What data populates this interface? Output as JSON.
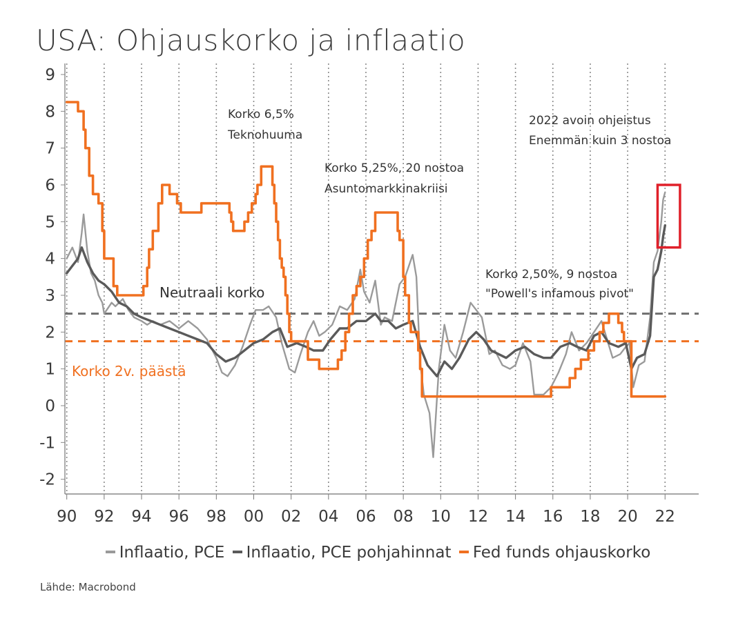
{
  "title": "USA: Ohjauskorko ja inflaatio",
  "source": "Lähde: Macrobond",
  "colors": {
    "pce": "#9a9a9a",
    "core_pce": "#5a5a5a",
    "fed_funds": "#f07020",
    "neutral_line": "#6e6e6e",
    "rate_2y_line": "#f07020",
    "highlight_box": "#e0202a",
    "grid": "#8a8a8a"
  },
  "legend": [
    {
      "label": "Inflaatio, PCE",
      "color": "#9a9a9a"
    },
    {
      "label": "Inflaatio, PCE pohjahinnat",
      "color": "#5a5a5a"
    },
    {
      "label": "Fed funds ohjauskorko",
      "color": "#f07020"
    }
  ],
  "annotations": {
    "korko65_line1": "Korko 6,5%",
    "korko65_line2": "Teknohuuma",
    "korko525_line1": "Korko 5,25%, 20 nostoa",
    "korko525_line2": "Asuntomarkkinakriisi",
    "korko250_line1": "Korko 2,50%, 9 nostoa",
    "korko250_line2": "\"Powell's infamous pivot\"",
    "ohjeistus_line1": "2022 avoin ohjeistus",
    "ohjeistus_line2": "Enemmän kuin 3 nostoa",
    "neutral": "Neutraali korko",
    "rate_2y": "Korko 2v. päästä"
  },
  "chart_data": {
    "type": "line",
    "title": "USA: Ohjauskorko ja inflaatio",
    "x_tick_labels": [
      "90",
      "92",
      "94",
      "96",
      "98",
      "00",
      "02",
      "04",
      "06",
      "08",
      "10",
      "12",
      "14",
      "16",
      "18",
      "20",
      "22"
    ],
    "x_tick_years": [
      1990,
      1992,
      1994,
      1996,
      1998,
      2000,
      2002,
      2004,
      2006,
      2008,
      2010,
      2012,
      2014,
      2016,
      2018,
      2020,
      2022
    ],
    "xlim": [
      1989.9,
      2023.8
    ],
    "ylim": [
      -2.4,
      9.3
    ],
    "y_ticks": [
      -2,
      -1,
      0,
      1,
      2,
      3,
      4,
      5,
      6,
      7,
      8,
      9
    ],
    "y_tick_labels": [
      "-2",
      "-1",
      "0",
      "1",
      "2",
      "3",
      "4",
      "5",
      "6",
      "7",
      "8",
      "9"
    ],
    "grid": "vertical dotted",
    "legend_position": "bottom",
    "reference_lines": [
      {
        "name": "Neutraali korko",
        "y": 2.5,
        "style": "dashed",
        "color": "#6e6e6e"
      },
      {
        "name": "Korko 2v. päästä",
        "y": 1.75,
        "style": "dashed",
        "color": "#f07020"
      }
    ],
    "highlight_box": {
      "x": [
        2021.6,
        2022.8
      ],
      "y": [
        4.3,
        6.0
      ],
      "color": "#e0202a"
    },
    "series": [
      {
        "name": "Fed funds ohjauskorko",
        "color": "#f07020",
        "step": true,
        "points": [
          [
            1990.0,
            8.25
          ],
          [
            1990.6,
            8.0
          ],
          [
            1990.9,
            7.5
          ],
          [
            1991.0,
            7.0
          ],
          [
            1991.2,
            6.25
          ],
          [
            1991.4,
            5.75
          ],
          [
            1991.7,
            5.5
          ],
          [
            1991.9,
            4.75
          ],
          [
            1992.0,
            4.0
          ],
          [
            1992.5,
            3.25
          ],
          [
            1992.7,
            3.0
          ],
          [
            1994.1,
            3.25
          ],
          [
            1994.3,
            3.75
          ],
          [
            1994.4,
            4.25
          ],
          [
            1994.6,
            4.75
          ],
          [
            1994.9,
            5.5
          ],
          [
            1995.1,
            6.0
          ],
          [
            1995.5,
            5.75
          ],
          [
            1995.9,
            5.5
          ],
          [
            1996.1,
            5.25
          ],
          [
            1997.2,
            5.5
          ],
          [
            1998.7,
            5.25
          ],
          [
            1998.8,
            5.0
          ],
          [
            1998.9,
            4.75
          ],
          [
            1999.5,
            5.0
          ],
          [
            1999.7,
            5.25
          ],
          [
            1999.9,
            5.5
          ],
          [
            2000.1,
            5.75
          ],
          [
            2000.2,
            6.0
          ],
          [
            2000.4,
            6.5
          ],
          [
            2001.0,
            6.0
          ],
          [
            2001.1,
            5.5
          ],
          [
            2001.2,
            5.0
          ],
          [
            2001.3,
            4.5
          ],
          [
            2001.4,
            4.0
          ],
          [
            2001.5,
            3.75
          ],
          [
            2001.6,
            3.5
          ],
          [
            2001.7,
            3.0
          ],
          [
            2001.8,
            2.5
          ],
          [
            2001.9,
            2.0
          ],
          [
            2002.0,
            1.75
          ],
          [
            2002.9,
            1.25
          ],
          [
            2003.5,
            1.0
          ],
          [
            2004.5,
            1.25
          ],
          [
            2004.7,
            1.5
          ],
          [
            2004.9,
            2.0
          ],
          [
            2005.1,
            2.5
          ],
          [
            2005.3,
            3.0
          ],
          [
            2005.5,
            3.25
          ],
          [
            2005.7,
            3.5
          ],
          [
            2005.9,
            4.0
          ],
          [
            2006.1,
            4.5
          ],
          [
            2006.3,
            4.75
          ],
          [
            2006.5,
            5.25
          ],
          [
            2007.7,
            4.75
          ],
          [
            2007.8,
            4.5
          ],
          [
            2008.0,
            3.5
          ],
          [
            2008.1,
            3.0
          ],
          [
            2008.3,
            2.25
          ],
          [
            2008.4,
            2.0
          ],
          [
            2008.8,
            1.5
          ],
          [
            2008.9,
            1.0
          ],
          [
            2009.0,
            0.25
          ],
          [
            2015.9,
            0.5
          ],
          [
            2016.9,
            0.75
          ],
          [
            2017.2,
            1.0
          ],
          [
            2017.5,
            1.25
          ],
          [
            2017.9,
            1.5
          ],
          [
            2018.2,
            1.75
          ],
          [
            2018.5,
            2.0
          ],
          [
            2018.7,
            2.25
          ],
          [
            2019.0,
            2.5
          ],
          [
            2019.5,
            2.25
          ],
          [
            2019.7,
            2.0
          ],
          [
            2019.8,
            1.75
          ],
          [
            2020.2,
            0.25
          ],
          [
            2022.0,
            0.25
          ]
        ]
      },
      {
        "name": "Inflaatio, PCE",
        "color": "#9a9a9a",
        "points": [
          [
            1990.0,
            4.0
          ],
          [
            1990.3,
            4.3
          ],
          [
            1990.6,
            3.9
          ],
          [
            1990.8,
            4.7
          ],
          [
            1990.9,
            5.2
          ],
          [
            1991.1,
            4.2
          ],
          [
            1991.3,
            3.6
          ],
          [
            1991.5,
            3.4
          ],
          [
            1991.7,
            3.0
          ],
          [
            1991.9,
            2.8
          ],
          [
            1992.0,
            2.5
          ],
          [
            1992.4,
            2.8
          ],
          [
            1992.6,
            2.7
          ],
          [
            1993.0,
            2.9
          ],
          [
            1993.3,
            2.6
          ],
          [
            1993.6,
            2.4
          ],
          [
            1994.0,
            2.3
          ],
          [
            1994.3,
            2.2
          ],
          [
            1994.6,
            2.3
          ],
          [
            1995.0,
            2.2
          ],
          [
            1995.5,
            2.3
          ],
          [
            1996.0,
            2.1
          ],
          [
            1996.5,
            2.3
          ],
          [
            1997.0,
            2.1
          ],
          [
            1997.5,
            1.8
          ],
          [
            1998.0,
            1.3
          ],
          [
            1998.3,
            0.9
          ],
          [
            1998.6,
            0.8
          ],
          [
            1999.0,
            1.1
          ],
          [
            1999.4,
            1.6
          ],
          [
            1999.8,
            2.2
          ],
          [
            2000.1,
            2.6
          ],
          [
            2000.5,
            2.6
          ],
          [
            2000.8,
            2.7
          ],
          [
            2001.2,
            2.4
          ],
          [
            2001.5,
            1.7
          ],
          [
            2001.9,
            1.0
          ],
          [
            2002.2,
            0.9
          ],
          [
            2002.5,
            1.4
          ],
          [
            2002.9,
            2.0
          ],
          [
            2003.2,
            2.3
          ],
          [
            2003.5,
            1.9
          ],
          [
            2003.8,
            2.0
          ],
          [
            2004.2,
            2.2
          ],
          [
            2004.6,
            2.7
          ],
          [
            2005.0,
            2.6
          ],
          [
            2005.4,
            2.9
          ],
          [
            2005.7,
            3.7
          ],
          [
            2005.9,
            3.1
          ],
          [
            2006.2,
            2.8
          ],
          [
            2006.5,
            3.4
          ],
          [
            2006.8,
            2.2
          ],
          [
            2007.0,
            2.4
          ],
          [
            2007.4,
            2.3
          ],
          [
            2007.8,
            3.3
          ],
          [
            2008.1,
            3.5
          ],
          [
            2008.5,
            4.1
          ],
          [
            2008.7,
            3.5
          ],
          [
            2008.9,
            1.2
          ],
          [
            2009.1,
            0.3
          ],
          [
            2009.4,
            -0.2
          ],
          [
            2009.6,
            -1.4
          ],
          [
            2009.9,
            1.0
          ],
          [
            2010.2,
            2.2
          ],
          [
            2010.5,
            1.5
          ],
          [
            2010.8,
            1.3
          ],
          [
            2011.2,
            2.0
          ],
          [
            2011.6,
            2.8
          ],
          [
            2011.9,
            2.6
          ],
          [
            2012.2,
            2.4
          ],
          [
            2012.6,
            1.4
          ],
          [
            2012.9,
            1.5
          ],
          [
            2013.3,
            1.1
          ],
          [
            2013.7,
            1.0
          ],
          [
            2014.0,
            1.1
          ],
          [
            2014.4,
            1.7
          ],
          [
            2014.8,
            1.2
          ],
          [
            2015.0,
            0.3
          ],
          [
            2015.5,
            0.3
          ],
          [
            2015.9,
            0.5
          ],
          [
            2016.3,
            0.9
          ],
          [
            2016.7,
            1.4
          ],
          [
            2017.0,
            2.0
          ],
          [
            2017.4,
            1.5
          ],
          [
            2017.8,
            1.7
          ],
          [
            2018.2,
            2.0
          ],
          [
            2018.6,
            2.3
          ],
          [
            2018.9,
            1.8
          ],
          [
            2019.2,
            1.3
          ],
          [
            2019.6,
            1.4
          ],
          [
            2019.9,
            1.6
          ],
          [
            2020.1,
            1.7
          ],
          [
            2020.3,
            0.5
          ],
          [
            2020.6,
            1.1
          ],
          [
            2020.9,
            1.2
          ],
          [
            2021.2,
            2.4
          ],
          [
            2021.4,
            3.9
          ],
          [
            2021.6,
            4.2
          ],
          [
            2021.8,
            5.0
          ],
          [
            2021.9,
            5.6
          ],
          [
            2022.0,
            5.8
          ]
        ]
      },
      {
        "name": "Inflaatio, PCE pohjahinnat",
        "color": "#5a5a5a",
        "points": [
          [
            1990.0,
            3.6
          ],
          [
            1990.3,
            3.8
          ],
          [
            1990.6,
            4.0
          ],
          [
            1990.8,
            4.3
          ],
          [
            1991.1,
            3.9
          ],
          [
            1991.4,
            3.6
          ],
          [
            1991.7,
            3.4
          ],
          [
            1992.0,
            3.3
          ],
          [
            1992.4,
            3.1
          ],
          [
            1992.8,
            2.8
          ],
          [
            1993.2,
            2.7
          ],
          [
            1993.6,
            2.5
          ],
          [
            1994.0,
            2.4
          ],
          [
            1994.5,
            2.3
          ],
          [
            1995.0,
            2.2
          ],
          [
            1995.5,
            2.1
          ],
          [
            1996.0,
            2.0
          ],
          [
            1996.5,
            1.9
          ],
          [
            1997.0,
            1.8
          ],
          [
            1997.5,
            1.7
          ],
          [
            1998.0,
            1.4
          ],
          [
            1998.5,
            1.2
          ],
          [
            1999.0,
            1.3
          ],
          [
            1999.5,
            1.5
          ],
          [
            2000.0,
            1.7
          ],
          [
            2000.5,
            1.8
          ],
          [
            2001.0,
            2.0
          ],
          [
            2001.4,
            2.1
          ],
          [
            2001.8,
            1.6
          ],
          [
            2002.3,
            1.7
          ],
          [
            2002.8,
            1.6
          ],
          [
            2003.2,
            1.5
          ],
          [
            2003.7,
            1.5
          ],
          [
            2004.1,
            1.8
          ],
          [
            2004.6,
            2.1
          ],
          [
            2005.0,
            2.1
          ],
          [
            2005.5,
            2.3
          ],
          [
            2006.0,
            2.3
          ],
          [
            2006.5,
            2.5
          ],
          [
            2006.8,
            2.3
          ],
          [
            2007.2,
            2.3
          ],
          [
            2007.6,
            2.1
          ],
          [
            2008.0,
            2.2
          ],
          [
            2008.5,
            2.3
          ],
          [
            2008.9,
            1.6
          ],
          [
            2009.3,
            1.1
          ],
          [
            2009.8,
            0.8
          ],
          [
            2010.2,
            1.2
          ],
          [
            2010.6,
            1.0
          ],
          [
            2011.0,
            1.3
          ],
          [
            2011.5,
            1.8
          ],
          [
            2011.9,
            2.0
          ],
          [
            2012.3,
            1.8
          ],
          [
            2012.7,
            1.5
          ],
          [
            2013.1,
            1.4
          ],
          [
            2013.5,
            1.3
          ],
          [
            2014.0,
            1.5
          ],
          [
            2014.5,
            1.6
          ],
          [
            2015.0,
            1.4
          ],
          [
            2015.5,
            1.3
          ],
          [
            2015.9,
            1.3
          ],
          [
            2016.4,
            1.6
          ],
          [
            2016.9,
            1.7
          ],
          [
            2017.3,
            1.6
          ],
          [
            2017.8,
            1.5
          ],
          [
            2018.2,
            1.9
          ],
          [
            2018.6,
            2.0
          ],
          [
            2019.0,
            1.7
          ],
          [
            2019.5,
            1.6
          ],
          [
            2019.9,
            1.7
          ],
          [
            2020.2,
            1.0
          ],
          [
            2020.5,
            1.3
          ],
          [
            2020.9,
            1.4
          ],
          [
            2021.2,
            1.9
          ],
          [
            2021.4,
            3.5
          ],
          [
            2021.6,
            3.7
          ],
          [
            2021.8,
            4.2
          ],
          [
            2021.9,
            4.6
          ],
          [
            2022.0,
            4.9
          ]
        ]
      }
    ]
  }
}
